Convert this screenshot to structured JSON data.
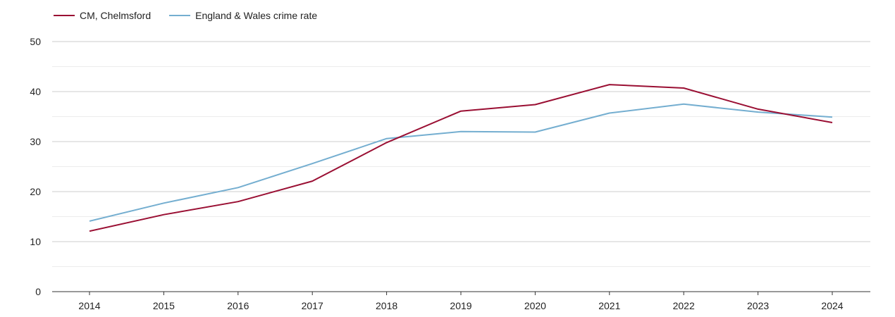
{
  "chart_data": {
    "type": "line",
    "title": "",
    "xlabel": "",
    "ylabel": "",
    "categories": [
      "2014",
      "2015",
      "2016",
      "2017",
      "2018",
      "2019",
      "2020",
      "2021",
      "2022",
      "2023",
      "2024"
    ],
    "yticks": [
      0,
      10,
      20,
      30,
      40,
      50
    ],
    "ylim": [
      0,
      50
    ],
    "grid": true,
    "legend_position": "top-left",
    "series": [
      {
        "name": "CM, Chelmsford",
        "color": "#9a0f33",
        "values": [
          12.1,
          15.4,
          18.0,
          22.1,
          29.8,
          36.1,
          37.4,
          41.4,
          40.7,
          36.5,
          33.8
        ]
      },
      {
        "name": "England & Wales crime rate",
        "color": "#74aed0",
        "values": [
          14.1,
          17.7,
          20.8,
          25.6,
          30.6,
          32.0,
          31.9,
          35.7,
          37.5,
          35.9,
          34.9
        ]
      }
    ]
  }
}
